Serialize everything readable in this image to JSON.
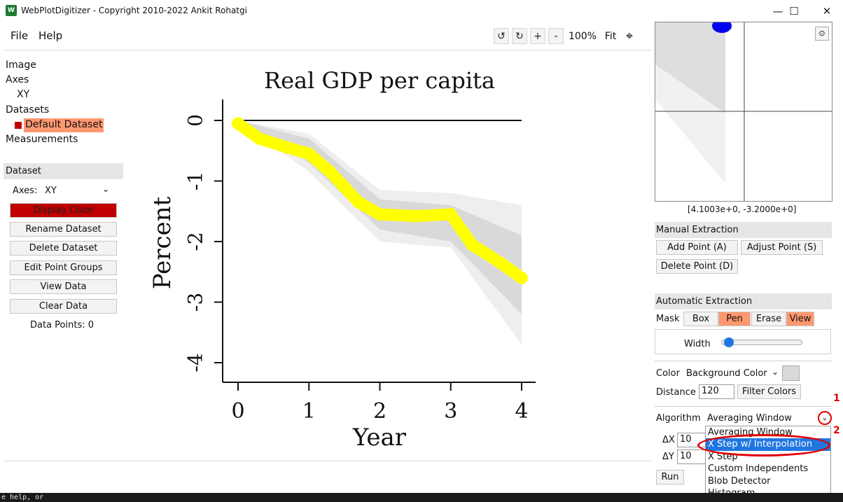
{
  "window": {
    "title": "WebPlotDigitizer - Copyright 2010-2022 Ankit Rohatgi",
    "minimize": "—",
    "maximize": "☐",
    "close": "✕"
  },
  "menu": {
    "file": "File",
    "help": "Help"
  },
  "toolbar": {
    "rotate_ccw": "↺",
    "rotate_cw": "↻",
    "zoom_in": "+",
    "zoom_out": "-",
    "zoom_level": "100%",
    "fit": "Fit",
    "crosshair": "⌖"
  },
  "tree": {
    "image": "Image",
    "axes": "Axes",
    "axes_child": "XY",
    "datasets": "Datasets",
    "dataset_item": "Default Dataset",
    "dataset_color": "#c00000",
    "measurements": "Measurements"
  },
  "dataset_panel": {
    "header": "Dataset",
    "axes_label": "Axes:",
    "axes_value": "XY",
    "buttons": {
      "display_color": "Display Color",
      "rename": "Rename Dataset",
      "delete": "Delete Dataset",
      "edit_groups": "Edit Point Groups",
      "view_data": "View Data",
      "clear_data": "Clear Data"
    },
    "data_points": "Data Points: 0"
  },
  "chart_data": {
    "type": "area",
    "title": "Real GDP per capita",
    "xlabel": "Year",
    "ylabel": "Percent",
    "xlim": [
      0,
      4
    ],
    "ylim": [
      -4,
      0
    ],
    "xticks": [
      "0",
      "1",
      "2",
      "3",
      "4"
    ],
    "yticks": [
      "0",
      "-1",
      "-2",
      "-3",
      "-4"
    ],
    "series": [
      {
        "name": "",
        "role": "outer band",
        "x": [
          0,
          1,
          2,
          3,
          4
        ],
        "upper": [
          0,
          -0.22,
          -1.15,
          -1.2,
          -1.4
        ],
        "lower": [
          0,
          -0.85,
          -2.0,
          -2.1,
          -3.7
        ],
        "color": "#eeeeee"
      },
      {
        "name": "",
        "role": "inner band",
        "x": [
          0,
          1,
          2,
          3,
          4
        ],
        "upper": [
          0,
          -0.3,
          -1.3,
          -1.4,
          -1.9
        ],
        "lower": [
          0,
          -0.7,
          -1.8,
          -2.0,
          -3.2
        ],
        "color": "#d9d9d9"
      },
      {
        "name": "",
        "role": "digitized trace",
        "x": [
          0,
          0.3,
          0.7,
          1.0,
          1.3,
          1.5,
          1.7,
          2.0,
          2.5,
          3.0,
          3.3,
          3.7,
          4.0
        ],
        "y": [
          -0.05,
          -0.3,
          -0.45,
          -0.55,
          -0.85,
          -1.1,
          -1.35,
          -1.55,
          -1.58,
          -1.55,
          -2.05,
          -2.35,
          -2.6
        ],
        "color": "#ffff00"
      }
    ],
    "reference_line": {
      "y": 0,
      "x": [
        0,
        4
      ]
    }
  },
  "zoom": {
    "coords": "[4.1003e+0, -3.2000e+0]"
  },
  "manual": {
    "header": "Manual Extraction",
    "add": "Add Point (A)",
    "adjust": "Adjust Point (S)",
    "delete": "Delete Point (D)"
  },
  "auto": {
    "header": "Automatic Extraction",
    "mask_label": "Mask",
    "box": "Box",
    "pen": "Pen",
    "erase": "Erase",
    "view": "View",
    "width_label": "Width",
    "width_value": 0.05,
    "color_label": "Color",
    "color_value": "Background Color",
    "distance_label": "Distance",
    "distance_value": "120",
    "filter_colors": "Filter Colors",
    "algorithm_label": "Algorithm",
    "algorithm_value": "Averaging Window",
    "dx_label": "ΔX",
    "dx_value": "10",
    "dy_label": "ΔY",
    "dy_value": "10",
    "run": "Run",
    "options": [
      "Averaging Window",
      "X Step w/ Interpolation",
      "X Step",
      "Custom Independents",
      "Blob Detector",
      "Histogram"
    ],
    "selected_option": "X Step w/ Interpolation"
  },
  "annotations": {
    "marker_1": "1",
    "marker_2": "2",
    "color": "#e00000"
  },
  "status": {
    "text": "e help, or"
  }
}
